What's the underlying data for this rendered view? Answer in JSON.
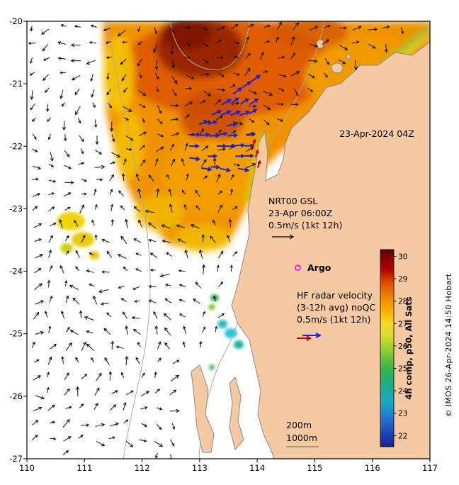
{
  "figure_annotations": {
    "datetime": "23-Apr-2024 04Z",
    "gsl_line1": "NRT00 GSL",
    "gsl_line2": "23-Apr 06:00Z",
    "gsl_line3": "0.5m/s (1kt 12h)",
    "argo_label": "Argo",
    "hf_line1": "HF radar velocity",
    "hf_line2": "(3-12h avg) noQC",
    "hf_line3": "0.5m/s (1kt 12h)",
    "isobath_200": "200m",
    "isobath_1000": "1000m",
    "copyright": "© IMOS 26-Apr-2024 14:50 Hobart"
  },
  "chart_data": {
    "type": "heatmap",
    "subtype": "sea-surface-temperature map with current vector overlays, NW Australia",
    "sst_time": "23-Apr-2024 04Z",
    "x_axis": {
      "label": "",
      "range": [
        110,
        117
      ],
      "ticks": [
        "110",
        "111",
        "112",
        "113",
        "114",
        "115",
        "116",
        "117"
      ]
    },
    "y_axis": {
      "label": "",
      "range": [
        -27,
        -20
      ],
      "ticks": [
        "-20",
        "-21",
        "-22",
        "-23",
        "-24",
        "-25",
        "-26",
        "-27"
      ]
    },
    "colorbar": {
      "label": "4h comp, p50, All Sats",
      "ticks": [
        "30",
        "29",
        "28",
        "27",
        "26",
        "25",
        "24",
        "23",
        "22"
      ],
      "range": [
        21.5,
        30.3
      ],
      "stops": [
        {
          "v": 30.3,
          "color": "#5a0000"
        },
        {
          "v": 30.0,
          "color": "#7f0000"
        },
        {
          "v": 29.4,
          "color": "#b30000"
        },
        {
          "v": 29.0,
          "color": "#d63900"
        },
        {
          "v": 28.5,
          "color": "#ea6a00"
        },
        {
          "v": 28.0,
          "color": "#f59200"
        },
        {
          "v": 27.5,
          "color": "#f9b400"
        },
        {
          "v": 27.0,
          "color": "#f8d62a"
        },
        {
          "v": 26.5,
          "color": "#ddda2e"
        },
        {
          "v": 26.0,
          "color": "#a8d12e"
        },
        {
          "v": 25.5,
          "color": "#6cc33e"
        },
        {
          "v": 25.0,
          "color": "#39b54a"
        },
        {
          "v": 24.5,
          "color": "#1fb073"
        },
        {
          "v": 24.0,
          "color": "#18ad99"
        },
        {
          "v": 23.5,
          "color": "#19a8c0"
        },
        {
          "v": 23.0,
          "color": "#1e88d0"
        },
        {
          "v": 22.5,
          "color": "#1f60c8"
        },
        {
          "v": 22.0,
          "color": "#1d3fb4"
        },
        {
          "v": 21.5,
          "color": "#14238f"
        }
      ]
    },
    "overlays": [
      {
        "name": "surface-current-vectors",
        "color": "#111111",
        "scale": "0.5m/s (1kt 12h)",
        "product": "NRT00 GSL",
        "time": "23-Apr 06:00Z"
      },
      {
        "name": "hf-radar-velocity",
        "colors": [
          "#2020d8",
          "#d40000"
        ],
        "scale": "0.5m/s (1kt 12h)",
        "note": "(3-12h avg) noQC"
      },
      {
        "name": "argo-float",
        "marker_color": "#ff00ff",
        "label": "Argo"
      },
      {
        "name": "isobaths",
        "labels": [
          "200m",
          "1000m"
        ],
        "color": "#aaaaaa"
      }
    ],
    "sst_estimates": [
      {
        "area": "warm core near 112.8E 20.5S",
        "sst_c": 30
      },
      {
        "area": "main warm pool north of 22.5S",
        "sst_c": 28.5
      },
      {
        "area": "western and southern fringe of warm pool",
        "sst_c": 27
      },
      {
        "area": "detached patch near 110.8E 23.4S",
        "sst_c": 27
      },
      {
        "area": "coastal strip near 116.5E 20.4S",
        "sst_c": 25.5
      },
      {
        "area": "coastal patch near 113.6E 25.2S (Shark Bay)",
        "sst_c": 23.5
      }
    ]
  }
}
